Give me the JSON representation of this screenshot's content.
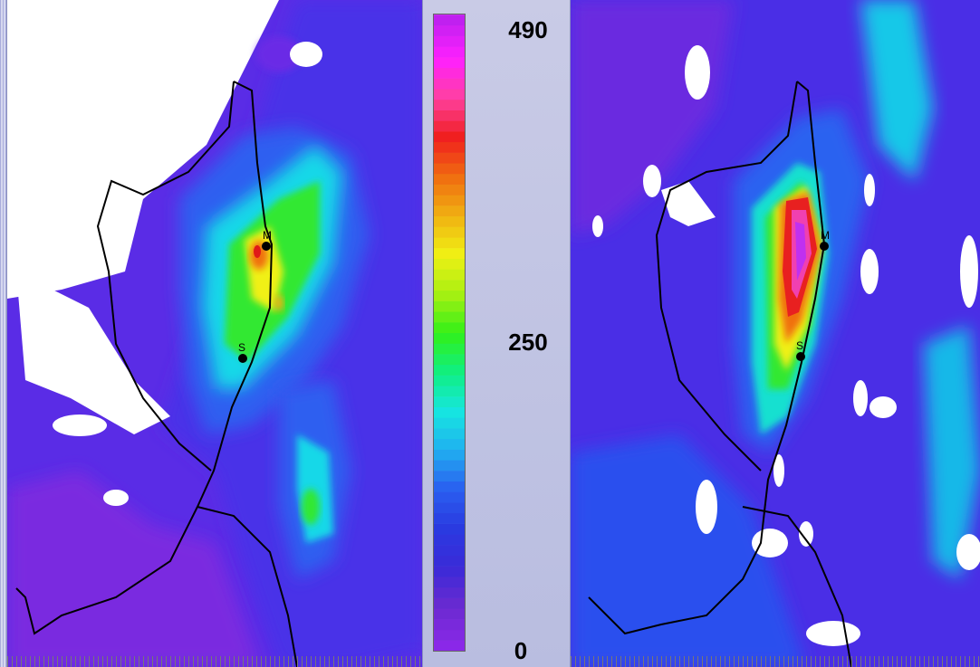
{
  "colorbar": {
    "max_label": "490",
    "mid_label": "250",
    "min_label": "0",
    "colors": [
      "#8a28e8",
      "#6a2ad0",
      "#3a2ad8",
      "#2a3ae0",
      "#2a5ff0",
      "#20b0f0",
      "#16e6e0",
      "#10ef80",
      "#32f018",
      "#a8f012",
      "#f0f014",
      "#f0b012",
      "#f06c10",
      "#f01e1e",
      "#ff40a0",
      "#ff20ff",
      "#c020f0"
    ]
  },
  "maps": [
    {
      "name": "left-map",
      "markers": [
        {
          "label": "M"
        },
        {
          "label": "S"
        }
      ]
    },
    {
      "name": "right-map",
      "markers": [
        {
          "label": "M"
        },
        {
          "label": "S"
        }
      ]
    }
  ]
}
